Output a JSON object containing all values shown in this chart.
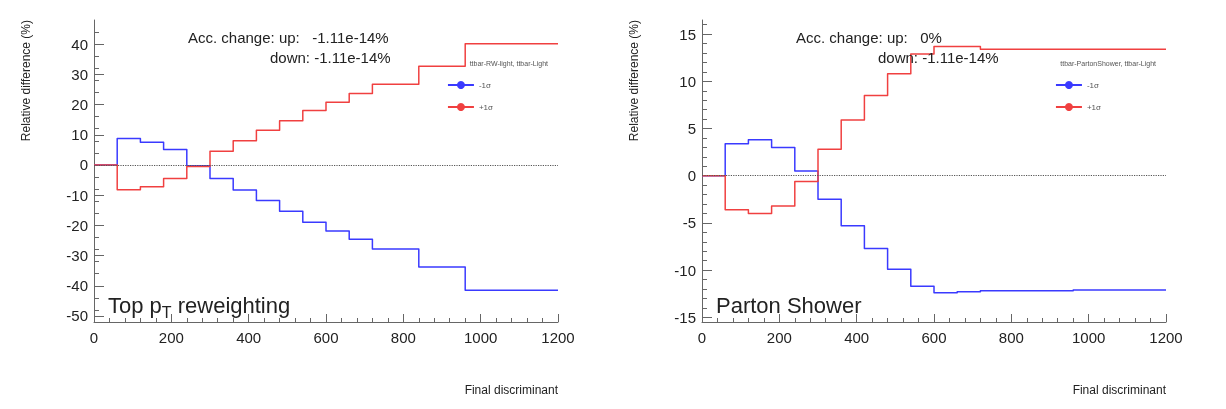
{
  "chart_data": [
    {
      "type": "step",
      "xlabel": "Final discriminant",
      "ylabel": "Relative difference (%)",
      "legend_title": "ttbar-RW-light, ttbar-Light",
      "legend": "top right",
      "annotations": [
        "Acc. change: up:   -1.11e-14%",
        "down: -1.11e-14%",
        "Top p$_{T}$ reweighting"
      ],
      "x": [
        0,
        60,
        120,
        180,
        240,
        300,
        360,
        420,
        480,
        540,
        600,
        660,
        720,
        840,
        960,
        1200
      ],
      "series": [
        {
          "name": "-1σ",
          "color": "#3a3aff",
          "values": [
            0,
            8.8,
            7.5,
            5.1,
            -0.3,
            -4.5,
            -8.3,
            -11.8,
            -15.3,
            -19,
            -21.9,
            -24.6,
            -27.8,
            -33.8,
            -41.5,
            -41.5
          ]
        },
        {
          "name": "+1σ",
          "color": "#f04040",
          "values": [
            0,
            -8.2,
            -7.2,
            -4.5,
            -0.5,
            4.5,
            8,
            11.5,
            14.6,
            18,
            20.8,
            23.7,
            26.7,
            32.7,
            40.1,
            40.1
          ]
        }
      ],
      "xlim": [
        0,
        1200
      ],
      "xticks": [
        0,
        200,
        400,
        600,
        800,
        1000,
        1200
      ],
      "ylim": [
        -52,
        48
      ],
      "yticks": [
        -50,
        -40,
        -30,
        -20,
        -10,
        0,
        10,
        20,
        30,
        40
      ],
      "ref_lines": [
        {
          "axis": "y",
          "value": 0,
          "label": null,
          "color": "#555555",
          "line_style": "dotted"
        }
      ],
      "grid": false
    },
    {
      "type": "step",
      "xlabel": "Final discriminant",
      "ylabel": "Relative difference (%)",
      "legend_title": "ttbar-PartonShower, ttbar-Light",
      "legend": "top right",
      "annotations": [
        "Acc. change: up:   0%",
        "down: -1.11e-14%",
        "Parton Shower"
      ],
      "x": [
        0,
        60,
        120,
        180,
        240,
        300,
        360,
        420,
        480,
        540,
        600,
        660,
        720,
        840,
        960,
        1200
      ],
      "series": [
        {
          "name": "-1σ",
          "color": "#3a3aff",
          "values": [
            0,
            3.4,
            3.8,
            3.0,
            0.5,
            -2.5,
            -5.3,
            -7.7,
            -9.9,
            -11.7,
            -12.4,
            -12.3,
            -12.2,
            -12.2,
            -12.1,
            -12.1
          ]
        },
        {
          "name": "+1σ",
          "color": "#f04040",
          "values": [
            0,
            -3.6,
            -4.0,
            -3.2,
            -0.6,
            2.8,
            5.9,
            8.5,
            10.8,
            12.9,
            13.7,
            13.7,
            13.4,
            13.4,
            13.4,
            13.4
          ]
        }
      ],
      "xlim": [
        0,
        1200
      ],
      "xticks": [
        0,
        200,
        400,
        600,
        800,
        1000,
        1200
      ],
      "ylim": [
        -15.5,
        16.5
      ],
      "yticks": [
        -15,
        -10,
        -5,
        0,
        5,
        10,
        15
      ],
      "ref_lines": [
        {
          "axis": "y",
          "value": 0,
          "label": null,
          "color": "#555555",
          "line_style": "dotted"
        }
      ],
      "grid": false
    }
  ]
}
